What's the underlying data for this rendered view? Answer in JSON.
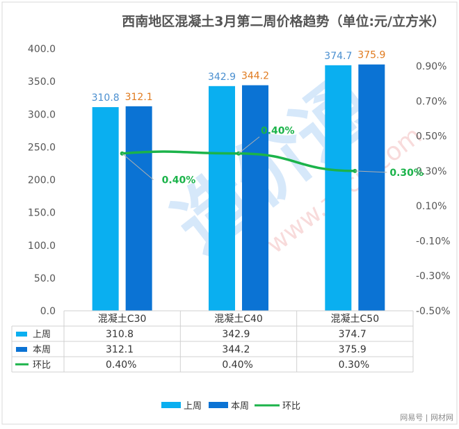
{
  "chart_data": {
    "type": "bar",
    "title": "西南地区混凝土3月第二周价格趋势（单位:元/立方米）",
    "categories": [
      "混凝土C30",
      "混凝土C40",
      "混凝土C50"
    ],
    "series": [
      {
        "name": "上周",
        "kind": "bar",
        "axis": "left",
        "color": "#0AAFF0",
        "values": [
          310.8,
          342.9,
          374.7
        ],
        "labels": [
          "310.8",
          "342.9",
          "374.7"
        ],
        "label_color": "#4A8FD0"
      },
      {
        "name": "本周",
        "kind": "bar",
        "axis": "left",
        "color": "#0B73D4",
        "values": [
          312.1,
          344.2,
          375.9
        ],
        "labels": [
          "312.1",
          "344.2",
          "375.9"
        ],
        "label_color": "#E07A1E"
      },
      {
        "name": "环比",
        "kind": "line",
        "axis": "right",
        "color": "#1BB34A",
        "values": [
          0.4,
          0.4,
          0.3
        ],
        "labels": [
          "0.40%",
          "0.40%",
          "0.30%"
        ],
        "label_color": "#1BB34A"
      }
    ],
    "left_axis": {
      "range": [
        0,
        400
      ],
      "ticks": [
        "0.0",
        "50.0",
        "100.0",
        "150.0",
        "200.0",
        "250.0",
        "300.0",
        "350.0",
        "400.0"
      ]
    },
    "right_axis": {
      "range": [
        -0.5,
        0.9
      ],
      "ticks": [
        "-0.50%",
        "-0.30%",
        "-0.10%",
        "0.10%",
        "0.30%",
        "0.50%",
        "0.70%",
        "0.90%"
      ]
    },
    "grid": false,
    "legend": "bottom",
    "data_table": {
      "rows": [
        {
          "name": "上周",
          "values": [
            "310.8",
            "342.9",
            "374.7"
          ]
        },
        {
          "name": "本周",
          "values": [
            "312.1",
            "344.2",
            "375.9"
          ]
        },
        {
          "name": "环比",
          "values": [
            "0.40%",
            "0.40%",
            "0.30%"
          ]
        }
      ]
    }
  },
  "watermark": {
    "text": "造价通",
    "url": "www.zjtcn.com"
  },
  "footer": {
    "text": "网易号 | 网材网"
  }
}
